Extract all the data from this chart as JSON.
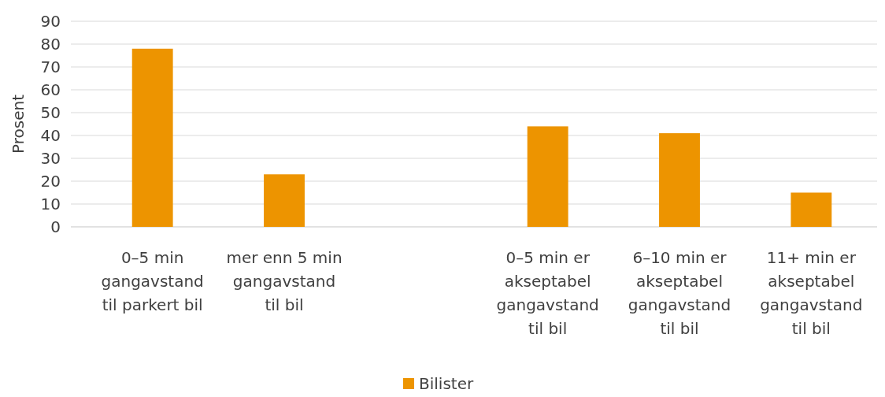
{
  "chart_data": {
    "type": "bar",
    "ylabel": "Prosent",
    "categories": [
      "0–5 min gangavstand til parkert bil",
      "mer enn 5 min gangavstand til bil",
      null,
      "0–5 min er akseptabel gangavstand til bil",
      "6–10 min er akseptabel gangavstand til bil",
      "11+ min er akseptabel gangavstand til bil"
    ],
    "series": [
      {
        "name": "Bilister",
        "color": "#ed9400",
        "values": [
          78,
          23,
          null,
          44,
          41,
          15
        ]
      }
    ],
    "ylim": [
      0,
      90
    ],
    "yticks": [
      0,
      10,
      20,
      30,
      40,
      50,
      60,
      70,
      80,
      90
    ],
    "grid": "y",
    "legend": "bottom"
  }
}
